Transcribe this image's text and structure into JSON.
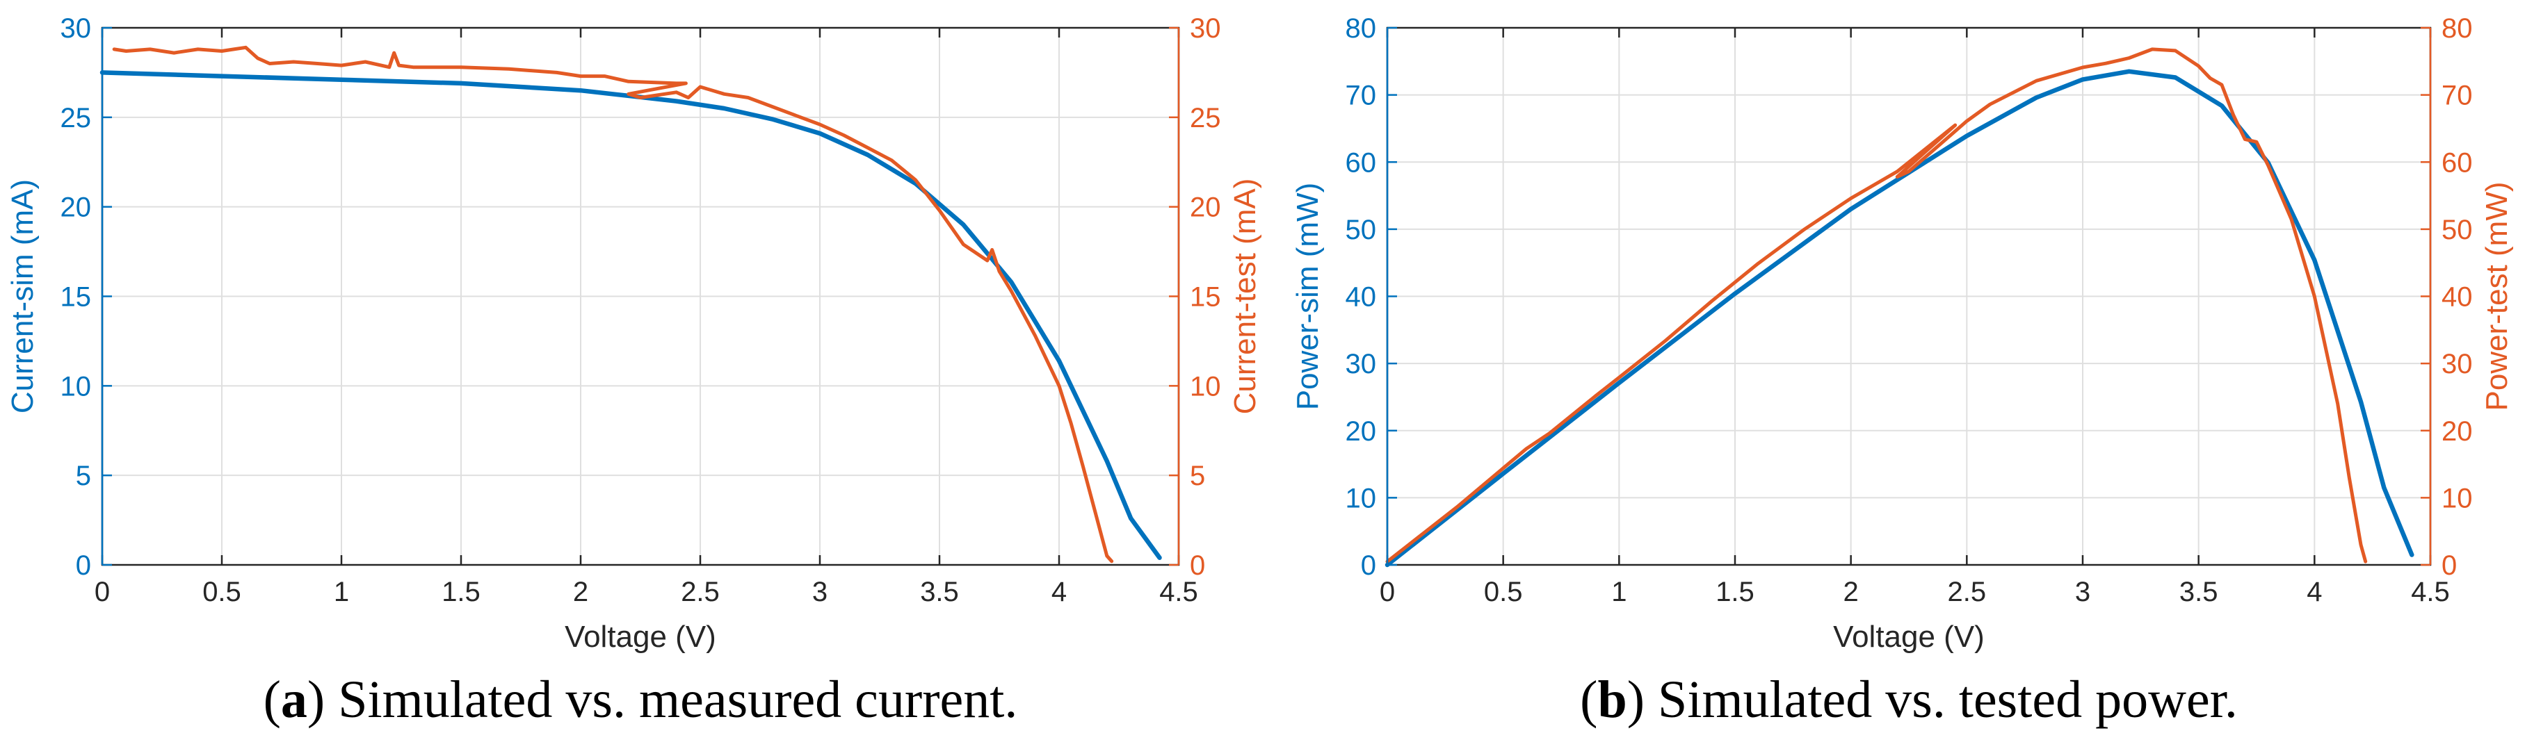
{
  "colors": {
    "sim": "#0072BD",
    "test": "#E35A24",
    "axis": "#262626",
    "grid": "#DFDFDF"
  },
  "chart_data": [
    {
      "id": "a",
      "type": "line",
      "caption_prefix": "(",
      "caption_letter": "a",
      "caption_text": ") Simulated vs. measured current.",
      "xlabel": "Voltage (V)",
      "ylabel_left": "Current-sim (mA)",
      "ylabel_right": "Current-test (mA)",
      "xlim": [
        0,
        4.5
      ],
      "ylim_left": [
        0,
        30
      ],
      "ylim_right": [
        0,
        30
      ],
      "xticks": [
        0,
        0.5,
        1,
        1.5,
        2,
        2.5,
        3,
        3.5,
        4,
        4.5
      ],
      "xtick_labels": [
        "0",
        "0.5",
        "1",
        "1.5",
        "2",
        "2.5",
        "3",
        "3.5",
        "4",
        "4.5"
      ],
      "yticks_left": [
        0,
        5,
        10,
        15,
        20,
        25,
        30
      ],
      "ytick_labels_left": [
        "0",
        "5",
        "10",
        "15",
        "20",
        "25",
        "30"
      ],
      "yticks_right": [
        0,
        5,
        10,
        15,
        20,
        25,
        30
      ],
      "ytick_labels_right": [
        "0",
        "5",
        "10",
        "15",
        "20",
        "25",
        "30"
      ],
      "grid": true,
      "series": [
        {
          "name": "Current-sim",
          "axis": "left",
          "x": [
            0,
            0.5,
            1,
            1.5,
            2,
            2.2,
            2.4,
            2.6,
            2.8,
            3.0,
            3.2,
            3.4,
            3.6,
            3.8,
            4.0,
            4.2,
            4.3,
            4.42
          ],
          "y": [
            27.5,
            27.3,
            27.1,
            26.9,
            26.5,
            26.2,
            25.9,
            25.5,
            24.9,
            24.1,
            22.9,
            21.3,
            19.0,
            15.8,
            11.4,
            5.8,
            2.6,
            0.4
          ]
        },
        {
          "name": "Current-test",
          "axis": "right",
          "x": [
            0.05,
            0.1,
            0.2,
            0.3,
            0.4,
            0.5,
            0.55,
            0.6,
            0.65,
            0.7,
            0.8,
            0.9,
            1.0,
            1.1,
            1.2,
            1.22,
            1.24,
            1.3,
            1.5,
            1.7,
            1.9,
            2.0,
            2.1,
            2.2,
            2.4,
            2.44,
            2.2,
            2.25,
            2.4,
            2.45,
            2.5,
            2.6,
            2.7,
            2.8,
            2.9,
            3.0,
            3.1,
            3.2,
            3.3,
            3.4,
            3.5,
            3.6,
            3.7,
            3.72,
            3.75,
            3.8,
            3.9,
            4.0,
            4.05,
            4.1,
            4.15,
            4.18,
            4.2,
            4.22
          ],
          "y": [
            28.8,
            28.7,
            28.8,
            28.6,
            28.8,
            28.7,
            28.8,
            28.9,
            28.3,
            28.0,
            28.1,
            28.0,
            27.9,
            28.1,
            27.8,
            28.6,
            27.9,
            27.8,
            27.8,
            27.7,
            27.5,
            27.3,
            27.3,
            27.0,
            26.9,
            26.9,
            26.3,
            26.1,
            26.4,
            26.1,
            26.7,
            26.3,
            26.1,
            25.6,
            25.1,
            24.6,
            24.0,
            23.3,
            22.6,
            21.5,
            19.8,
            17.9,
            17.0,
            17.6,
            16.4,
            15.3,
            12.8,
            10.0,
            7.9,
            5.5,
            3.0,
            1.5,
            0.5,
            0.2
          ]
        }
      ]
    },
    {
      "id": "b",
      "type": "line",
      "caption_prefix": "(",
      "caption_letter": "b",
      "caption_text": ") Simulated vs. tested power.",
      "xlabel": "Voltage (V)",
      "ylabel_left": "Power-sim (mW)",
      "ylabel_right": "Power-test (mW)",
      "xlim": [
        0,
        4.5
      ],
      "ylim_left": [
        0,
        80
      ],
      "ylim_right": [
        0,
        80
      ],
      "xticks": [
        0,
        0.5,
        1,
        1.5,
        2,
        2.5,
        3,
        3.5,
        4,
        4.5
      ],
      "xtick_labels": [
        "0",
        "0.5",
        "1",
        "1.5",
        "2",
        "2.5",
        "3",
        "3.5",
        "4",
        "4.5"
      ],
      "yticks_left": [
        0,
        10,
        20,
        30,
        40,
        50,
        60,
        70,
        80
      ],
      "ytick_labels_left": [
        "0",
        "10",
        "20",
        "30",
        "40",
        "50",
        "60",
        "70",
        "80"
      ],
      "yticks_right": [
        0,
        10,
        20,
        30,
        40,
        50,
        60,
        70,
        80
      ],
      "ytick_labels_right": [
        "0",
        "10",
        "20",
        "30",
        "40",
        "50",
        "60",
        "70",
        "80"
      ],
      "grid": true,
      "series": [
        {
          "name": "Power-sim",
          "axis": "left",
          "x": [
            0,
            0.5,
            1.0,
            1.5,
            2.0,
            2.5,
            2.8,
            3.0,
            3.2,
            3.4,
            3.6,
            3.8,
            4.0,
            4.2,
            4.3,
            4.42
          ],
          "y": [
            0,
            13.6,
            27.1,
            40.4,
            53.0,
            63.9,
            69.6,
            72.3,
            73.5,
            72.6,
            68.4,
            59.9,
            45.4,
            24.3,
            11.5,
            1.5
          ]
        },
        {
          "name": "Power-test",
          "axis": "right",
          "x": [
            0,
            0.3,
            0.6,
            0.7,
            0.9,
            1.0,
            1.2,
            1.4,
            1.6,
            1.8,
            2.0,
            2.2,
            2.45,
            2.2,
            2.25,
            2.5,
            2.6,
            2.8,
            3.0,
            3.1,
            3.2,
            3.3,
            3.4,
            3.5,
            3.55,
            3.6,
            3.65,
            3.7,
            3.75,
            3.8,
            3.9,
            4.0,
            4.1,
            4.15,
            4.2,
            4.22
          ],
          "y": [
            0.5,
            8.6,
            17.3,
            19.6,
            25.2,
            27.9,
            33.4,
            39.3,
            44.9,
            50.0,
            54.6,
            58.6,
            65.5,
            57.8,
            58.6,
            66.1,
            68.6,
            72.1,
            74.1,
            74.7,
            75.5,
            76.8,
            76.6,
            74.3,
            72.5,
            71.5,
            67.0,
            63.4,
            63.0,
            59.5,
            51.5,
            40.0,
            24.0,
            13.0,
            3.0,
            0.5
          ]
        }
      ]
    }
  ]
}
